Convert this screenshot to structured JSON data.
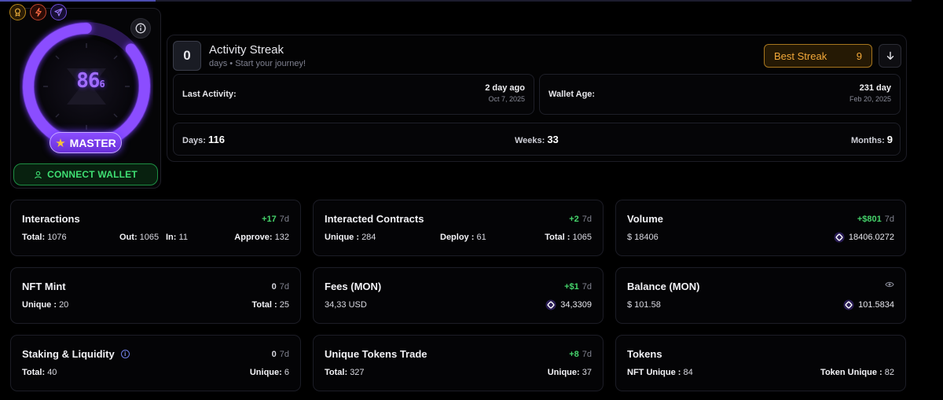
{
  "header": {
    "tab_indicator": ""
  },
  "profile": {
    "chips": [
      "medal-icon",
      "bolt-icon",
      "send-icon"
    ],
    "score_main": "86",
    "score_sub": "6",
    "rank": "MASTER",
    "connect_label": "CONNECT WALLET",
    "accent": "#8b4dff"
  },
  "streak": {
    "count": "0",
    "title": "Activity Streak",
    "subtitle": "days • Start your journey!",
    "best_label": "Best Streak",
    "best_value": "9",
    "last_activity": {
      "label": "Last Activity:",
      "value": "2 day ago",
      "date": "Oct 7, 2025"
    },
    "wallet_age": {
      "label": "Wallet Age:",
      "value": "231 day",
      "date": "Feb 20, 2025"
    },
    "days": {
      "label": "Days:",
      "value": "116"
    },
    "weeks": {
      "label": "Weeks:",
      "value": "33"
    },
    "months": {
      "label": "Months:",
      "value": "9"
    }
  },
  "cards": {
    "interactions": {
      "title": "Interactions",
      "delta": "+17",
      "period": "7d",
      "total_label": "Total:",
      "total": "1076",
      "out_label": "Out:",
      "out": "1065",
      "in_label": "In:",
      "in": "11",
      "approve_label": "Approve:",
      "approve": "132"
    },
    "contracts": {
      "title": "Interacted Contracts",
      "delta": "+2",
      "period": "7d",
      "unique_label": "Unique :",
      "unique": "284",
      "deploy_label": "Deploy :",
      "deploy": "61",
      "total_label": "Total :",
      "total": "1065"
    },
    "volume": {
      "title": "Volume",
      "delta": "+$801",
      "period": "7d",
      "usd": "$ 18406",
      "mon": "18406.0272"
    },
    "nft_mint": {
      "title": "NFT Mint",
      "delta": "0",
      "period": "7d",
      "unique_label": "Unique :",
      "unique": "20",
      "total_label": "Total :",
      "total": "25"
    },
    "fees": {
      "title": "Fees (MON)",
      "delta": "+$1",
      "period": "7d",
      "usd": "34,33 USD",
      "mon": "34,3309"
    },
    "balance": {
      "title": "Balance (MON)",
      "usd": "$ 101.58",
      "mon": "101.5834"
    },
    "staking": {
      "title": "Staking & Liquidity",
      "delta": "0",
      "period": "7d",
      "total_label": "Total:",
      "total": "40",
      "unique_label": "Unique:",
      "unique": "6"
    },
    "tokens_trade": {
      "title": "Unique Tokens Trade",
      "delta": "+8",
      "period": "7d",
      "total_label": "Total:",
      "total": "327",
      "unique_label": "Unique:",
      "unique": "37"
    },
    "tokens": {
      "title": "Tokens",
      "nft_label": "NFT Unique :",
      "nft": "84",
      "token_label": "Token Unique :",
      "token": "82"
    }
  },
  "colors": {
    "positive": "#45d36b",
    "gold": "#f3a93a",
    "green_btn": "#3fdf73"
  }
}
